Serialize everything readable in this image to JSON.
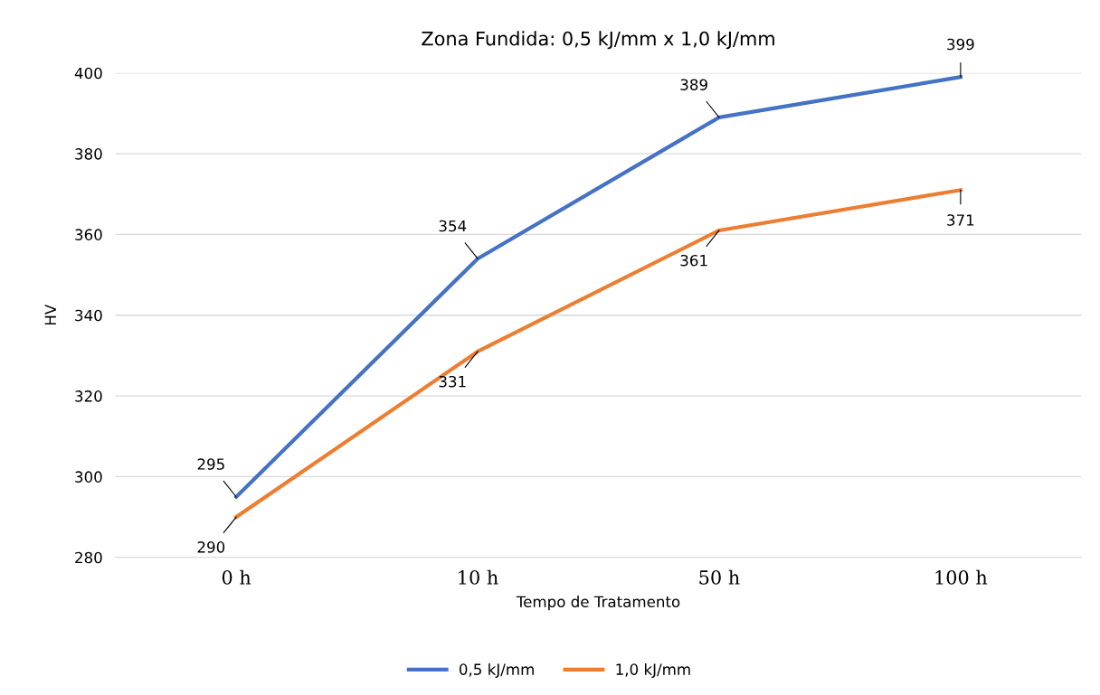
{
  "chart_data": {
    "type": "line",
    "title": "Zona Fundida: 0,5 kJ/mm x 1,0 kJ/mm",
    "xlabel": "Tempo de Tratamento",
    "ylabel": "HV",
    "categories": [
      "0 h",
      "10 h",
      "50 h",
      "100 h"
    ],
    "series": [
      {
        "name": "0,5 kJ/mm",
        "color": "#4472c4",
        "values": [
          295,
          354,
          389,
          399
        ]
      },
      {
        "name": "1,0 kJ/mm",
        "color": "#ed7d31",
        "values": [
          290,
          331,
          361,
          371
        ]
      }
    ],
    "ylim": [
      280,
      400
    ],
    "yticks": [
      280,
      300,
      320,
      340,
      360,
      380,
      400
    ],
    "grid": "y",
    "legend": "bottom",
    "data_labels": true,
    "marker": "none",
    "line_style": "solid"
  }
}
